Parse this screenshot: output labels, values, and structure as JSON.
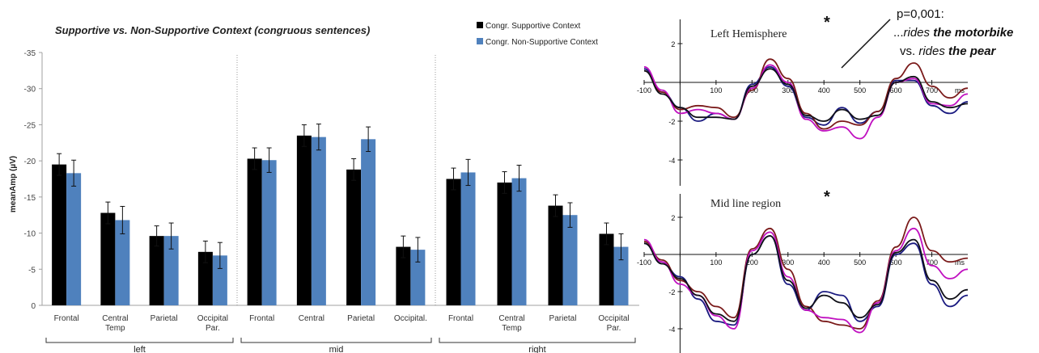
{
  "chart_data": [
    {
      "type": "bar",
      "title": "Supportive vs. Non-Supportive Context (congruous sentences)",
      "xlabel": "",
      "ylabel": "meanAmp (µV)",
      "ylim": [
        0,
        -35
      ],
      "yticks": [
        0,
        -5,
        -10,
        -15,
        -20,
        -25,
        -30,
        -35
      ],
      "y_inverted": true,
      "grid": false,
      "legend_position": "top-right",
      "groups": [
        {
          "name": "left",
          "categories": [
            "Frontal",
            "Central Temp",
            "Parietal",
            "Occipital Par."
          ]
        },
        {
          "name": "mid",
          "categories": [
            "Frontal",
            "Central",
            "Parietal",
            "Occipital."
          ]
        },
        {
          "name": "right",
          "categories": [
            "Frontal",
            "Central Temp",
            "Parietal",
            "Occipital Par."
          ]
        }
      ],
      "series": [
        {
          "name": "Congr. Supportive Context",
          "color": "#000000",
          "values": [
            -19.5,
            -12.8,
            -9.6,
            -7.4,
            -20.3,
            -23.5,
            -18.8,
            -8.1,
            -17.5,
            -17.0,
            -13.8,
            -9.9
          ],
          "errors": [
            1.5,
            1.5,
            1.4,
            1.5,
            1.5,
            1.5,
            1.5,
            1.5,
            1.5,
            1.5,
            1.5,
            1.5
          ]
        },
        {
          "name": "Congr. Non-Supportive Context",
          "color": "#4f81bd",
          "values": [
            -18.3,
            -11.8,
            -9.6,
            -6.9,
            -20.1,
            -23.3,
            -23.0,
            -7.7,
            -18.4,
            -17.6,
            -12.5,
            -8.1
          ],
          "errors": [
            1.8,
            1.9,
            1.8,
            1.8,
            1.7,
            1.8,
            1.7,
            1.7,
            1.8,
            1.8,
            1.7,
            1.8
          ]
        }
      ]
    },
    {
      "type": "line",
      "title": "Left Hemisphere",
      "xlabel": "ms",
      "xticks": [
        -100,
        0,
        100,
        200,
        300,
        400,
        500,
        600,
        700
      ],
      "yticks": [
        -4,
        -2,
        0,
        2
      ],
      "y_inverted": true,
      "xlim": [
        -100,
        800
      ],
      "ylim": [
        3,
        -5
      ],
      "significance_marker": "*",
      "series": [
        {
          "color": "#1a1a80",
          "x": [
            -100,
            -50,
            0,
            50,
            100,
            150,
            200,
            250,
            300,
            350,
            400,
            450,
            500,
            550,
            600,
            650,
            700,
            750,
            800
          ],
          "y": [
            0.7,
            -0.5,
            -1.3,
            -2.0,
            -1.6,
            -1.9,
            -0.1,
            0.8,
            -0.2,
            -1.8,
            -2.2,
            -1.3,
            -2.1,
            -1.5,
            0.1,
            0.1,
            -1.2,
            -1.6,
            -1.0
          ]
        },
        {
          "color": "#7a1a1a",
          "x": [
            -100,
            -50,
            0,
            50,
            100,
            150,
            200,
            250,
            300,
            350,
            400,
            450,
            500,
            550,
            600,
            650,
            700,
            750,
            800
          ],
          "y": [
            0.6,
            -0.5,
            -1.4,
            -1.2,
            -1.3,
            -1.8,
            -0.4,
            1.2,
            0.2,
            -1.6,
            -2.4,
            -2.0,
            -2.2,
            -1.5,
            0.2,
            1.0,
            -0.2,
            -0.8,
            -0.3
          ]
        },
        {
          "color": "#c010c0",
          "x": [
            -100,
            -50,
            0,
            50,
            100,
            150,
            200,
            250,
            300,
            350,
            400,
            450,
            500,
            550,
            600,
            650,
            700,
            750,
            800
          ],
          "y": [
            0.8,
            -0.4,
            -1.6,
            -1.4,
            -1.6,
            -1.9,
            -0.3,
            0.9,
            0.0,
            -1.9,
            -2.5,
            -2.3,
            -2.9,
            -1.8,
            0.0,
            0.2,
            -1.1,
            -1.2,
            -0.6
          ]
        },
        {
          "color": "#101018",
          "x": [
            -100,
            -50,
            0,
            50,
            100,
            150,
            200,
            250,
            300,
            350,
            400,
            450,
            500,
            550,
            600,
            650,
            700,
            750,
            800
          ],
          "y": [
            0.6,
            -0.6,
            -1.3,
            -1.8,
            -1.8,
            -1.9,
            -0.2,
            0.7,
            -0.1,
            -1.7,
            -2.0,
            -1.4,
            -1.9,
            -1.7,
            0.0,
            0.3,
            -1.0,
            -1.3,
            -1.1
          ]
        }
      ]
    },
    {
      "type": "line",
      "title": "Mid line region",
      "xlabel": "ms",
      "xticks": [
        -100,
        0,
        100,
        200,
        300,
        400,
        500,
        600,
        700
      ],
      "yticks": [
        -4,
        -2,
        0,
        2
      ],
      "y_inverted": true,
      "xlim": [
        -100,
        800
      ],
      "ylim": [
        3,
        -5
      ],
      "significance_marker": "*",
      "series": [
        {
          "color": "#1a1a80",
          "x": [
            -100,
            -50,
            0,
            50,
            100,
            150,
            200,
            250,
            300,
            350,
            400,
            450,
            500,
            550,
            600,
            650,
            700,
            750,
            800
          ],
          "y": [
            0.6,
            -0.5,
            -1.2,
            -2.4,
            -3.6,
            -3.8,
            0.0,
            1.0,
            -1.6,
            -3.0,
            -2.0,
            -2.2,
            -3.6,
            -2.8,
            0.0,
            0.6,
            -1.6,
            -2.8,
            -2.2
          ]
        },
        {
          "color": "#7a1a1a",
          "x": [
            -100,
            -50,
            0,
            50,
            100,
            150,
            200,
            250,
            300,
            350,
            400,
            450,
            500,
            550,
            600,
            650,
            700,
            750,
            800
          ],
          "y": [
            0.7,
            -0.3,
            -1.4,
            -2.0,
            -2.8,
            -3.4,
            0.3,
            1.4,
            -0.8,
            -2.8,
            -3.6,
            -3.8,
            -4.0,
            -2.5,
            0.4,
            2.0,
            0.2,
            -0.4,
            -0.2
          ]
        },
        {
          "color": "#c010c0",
          "x": [
            -100,
            -50,
            0,
            50,
            100,
            150,
            200,
            250,
            300,
            350,
            400,
            450,
            500,
            550,
            600,
            650,
            700,
            750,
            800
          ],
          "y": [
            0.8,
            -0.4,
            -1.6,
            -2.2,
            -3.3,
            -4.0,
            0.2,
            1.2,
            -1.2,
            -3.0,
            -3.4,
            -3.5,
            -4.2,
            -2.6,
            0.2,
            1.4,
            -0.6,
            -1.3,
            -0.8
          ]
        },
        {
          "color": "#101018",
          "x": [
            -100,
            -50,
            0,
            50,
            100,
            150,
            200,
            250,
            300,
            350,
            400,
            450,
            500,
            550,
            600,
            650,
            700,
            750,
            800
          ],
          "y": [
            0.6,
            -0.5,
            -1.3,
            -2.2,
            -3.2,
            -3.6,
            0.0,
            1.0,
            -1.4,
            -2.9,
            -2.2,
            -2.6,
            -3.4,
            -2.7,
            0.1,
            0.8,
            -1.4,
            -2.4,
            -1.9
          ]
        }
      ]
    }
  ],
  "annotation": {
    "line1": "p=0,001:",
    "line2_prefix": "...",
    "line2_italic": "rides ",
    "line2_bold": "the motorbike",
    "line3_prefix": "vs. ",
    "line3_italic": "rides ",
    "line3_bold": "the pear"
  }
}
